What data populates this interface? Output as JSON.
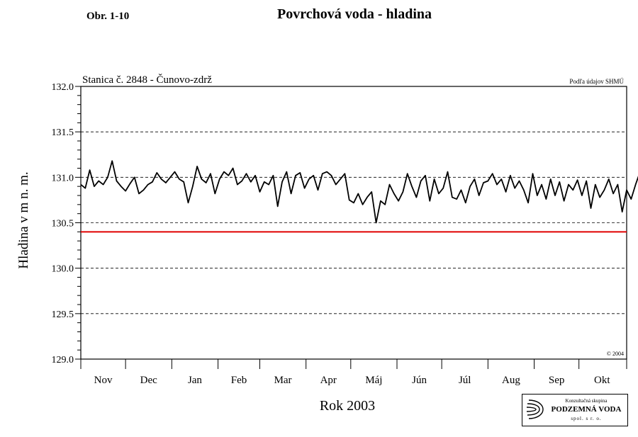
{
  "figure_label": "Obr. 1-10",
  "chart_data": {
    "type": "line",
    "title": "Povrchová voda - hladina",
    "station": "Stanica č. 2848 - Čunovo-zdrž",
    "source_note": "Podľa údajov SHMÚ",
    "copyright": "© 2004",
    "xlabel": "Rok 2003",
    "ylabel": "Hladina v m n. m.",
    "ylim": [
      129.0,
      132.0
    ],
    "yticks": [
      "129.0",
      "129.5",
      "130.0",
      "130.5",
      "131.0",
      "131.5",
      "132.0"
    ],
    "months": [
      "Nov",
      "Dec",
      "Jan",
      "Feb",
      "Mar",
      "Apr",
      "Máj",
      "Jún",
      "Júl",
      "Aug",
      "Sep",
      "Okt"
    ],
    "grid": "dashed horizontal",
    "reference_line": {
      "value": 130.4,
      "color": "#e00000"
    },
    "series": [
      {
        "color": "#000000",
        "x_unit": "day index (0 = 1 Nov)",
        "x_start": 0,
        "x_step": 3,
        "values": [
          130.92,
          130.88,
          131.08,
          130.9,
          130.96,
          130.92,
          131.0,
          131.18,
          130.96,
          130.9,
          130.85,
          130.93,
          131.0,
          130.82,
          130.86,
          130.92,
          130.95,
          131.05,
          130.98,
          130.94,
          131.0,
          131.06,
          130.98,
          130.95,
          130.72,
          130.9,
          131.12,
          130.98,
          130.94,
          131.04,
          130.82,
          130.98,
          131.06,
          131.02,
          131.1,
          130.92,
          130.96,
          131.04,
          130.95,
          131.02,
          130.84,
          130.95,
          130.92,
          131.02,
          130.68,
          130.95,
          131.06,
          130.82,
          131.02,
          131.05,
          130.88,
          130.98,
          131.02,
          130.86,
          131.04,
          131.06,
          131.02,
          130.92,
          130.98,
          131.04,
          130.75,
          130.72,
          130.82,
          130.7,
          130.78,
          130.84,
          130.5,
          130.74,
          130.7,
          130.92,
          130.82,
          130.74,
          130.84,
          131.04,
          130.9,
          130.78,
          130.96,
          131.02,
          130.74,
          130.98,
          130.82,
          130.88,
          131.06,
          130.78,
          130.76,
          130.86,
          130.72,
          130.9,
          130.98,
          130.8,
          130.94,
          130.96,
          131.04,
          130.92,
          130.98,
          130.84,
          131.02,
          130.88,
          130.96,
          130.86,
          130.72,
          131.04,
          130.8,
          130.92,
          130.76,
          130.98,
          130.8,
          130.95,
          130.74,
          130.92,
          130.86,
          130.97,
          130.8,
          130.96,
          130.66,
          130.92,
          130.78,
          130.86,
          130.98,
          130.82,
          130.92,
          130.62,
          130.86,
          130.76,
          130.92,
          131.06,
          130.84,
          130.5,
          130.9,
          130.72,
          130.96,
          130.8,
          131.04,
          130.9,
          130.98,
          131.02,
          130.84,
          130.97,
          131.12,
          130.92,
          131.02,
          130.96,
          130.86,
          131.06,
          130.96,
          131.0,
          130.84,
          130.96,
          131.06,
          130.9,
          131.04,
          131.0,
          130.96,
          131.06,
          131.02,
          130.98,
          130.86,
          131.03,
          131.0,
          130.96,
          131.02,
          131.0,
          131.04,
          131.02,
          130.98,
          131.03,
          131.0,
          130.86,
          131.02,
          130.92,
          131.0
        ]
      }
    ]
  },
  "logo": {
    "line1": "Konzultačná skupina",
    "line2": "PODZEMNÁ VODA",
    "line3": "spol. s r. o."
  }
}
